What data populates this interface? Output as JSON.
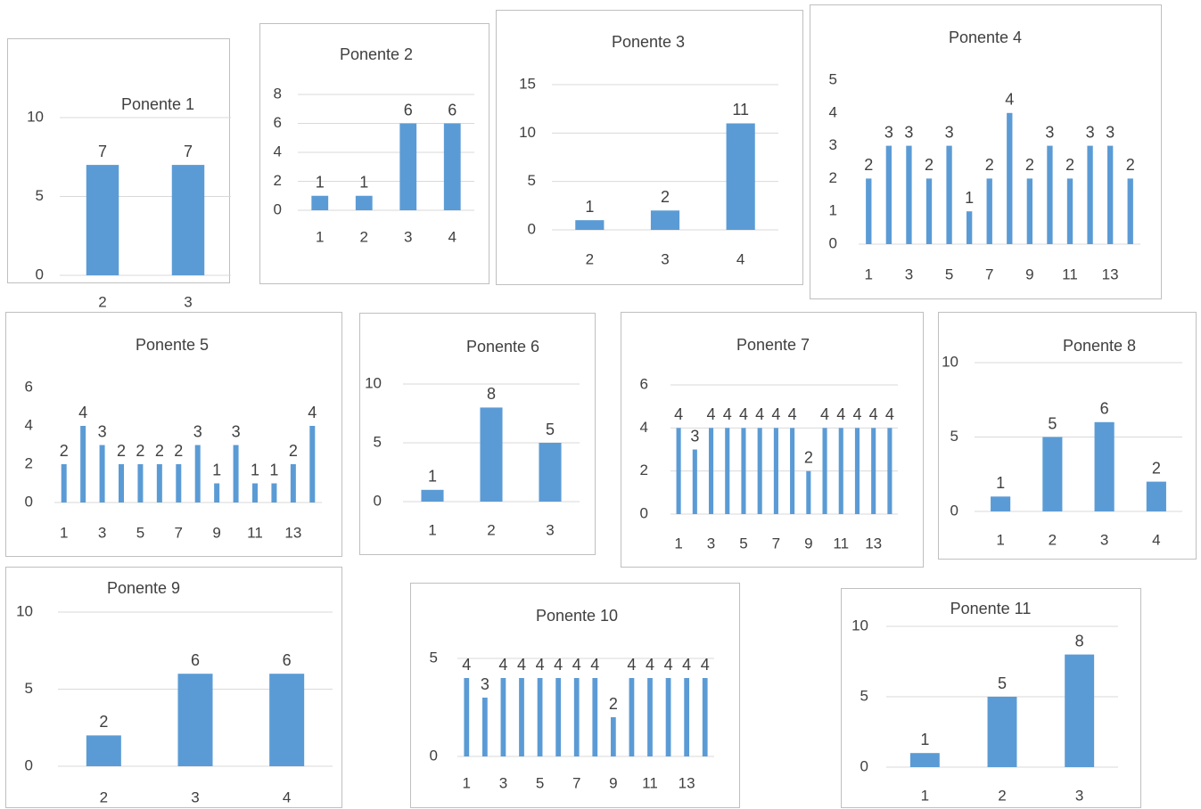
{
  "chart_data": [
    {
      "type": "bar",
      "title": "Ponente 1",
      "categories": [
        "2",
        "3"
      ],
      "values": [
        7,
        7
      ],
      "yticks": [
        0,
        5,
        10
      ],
      "ylim": [
        0,
        10
      ],
      "xlabel": "",
      "ylabel": "",
      "grid": true,
      "color": "#5b9bd5"
    },
    {
      "type": "bar",
      "title": "Ponente 2",
      "categories": [
        "1",
        "2",
        "3",
        "4"
      ],
      "values": [
        1,
        1,
        6,
        6
      ],
      "yticks": [
        0,
        2,
        4,
        6,
        8
      ],
      "ylim": [
        0,
        8
      ],
      "xlabel": "",
      "ylabel": "",
      "grid": true,
      "color": "#5b9bd5"
    },
    {
      "type": "bar",
      "title": "Ponente 3",
      "categories": [
        "2",
        "3",
        "4"
      ],
      "values": [
        1,
        2,
        11
      ],
      "yticks": [
        0,
        5,
        10,
        15
      ],
      "ylim": [
        0,
        15
      ],
      "xlabel": "",
      "ylabel": "",
      "grid": true,
      "color": "#5b9bd5"
    },
    {
      "type": "bar",
      "title": "Ponente 4",
      "categories": [
        "1",
        "2",
        "3",
        "4",
        "5",
        "6",
        "7",
        "8",
        "9",
        "10",
        "11",
        "12",
        "13",
        "14"
      ],
      "xtick_labels": [
        "1",
        "",
        "3",
        "",
        "5",
        "",
        "7",
        "",
        "9",
        "",
        "11",
        "",
        "13",
        ""
      ],
      "values": [
        2,
        3,
        3,
        2,
        3,
        1,
        2,
        4,
        2,
        3,
        2,
        3,
        3,
        2
      ],
      "yticks": [
        0,
        1,
        2,
        3,
        4,
        5
      ],
      "ylim": [
        0,
        5
      ],
      "xlabel": "",
      "ylabel": "",
      "grid": false,
      "color": "#5b9bd5"
    },
    {
      "type": "bar",
      "title": "Ponente 5",
      "categories": [
        "1",
        "2",
        "3",
        "4",
        "5",
        "6",
        "7",
        "8",
        "9",
        "10",
        "11",
        "12",
        "13",
        "14"
      ],
      "xtick_labels": [
        "1",
        "",
        "3",
        "",
        "5",
        "",
        "7",
        "",
        "9",
        "",
        "11",
        "",
        "13",
        ""
      ],
      "values": [
        2,
        4,
        3,
        2,
        2,
        2,
        2,
        3,
        1,
        3,
        1,
        1,
        2,
        4
      ],
      "yticks": [
        0,
        2,
        4,
        6
      ],
      "ylim": [
        0,
        6
      ],
      "xlabel": "",
      "ylabel": "",
      "grid": false,
      "color": "#5b9bd5"
    },
    {
      "type": "bar",
      "title": "Ponente 6",
      "categories": [
        "1",
        "2",
        "3"
      ],
      "values": [
        1,
        8,
        5
      ],
      "yticks": [
        0,
        5,
        10
      ],
      "ylim": [
        0,
        10
      ],
      "xlabel": "",
      "ylabel": "",
      "grid": true,
      "color": "#5b9bd5"
    },
    {
      "type": "bar",
      "title": "Ponente 7",
      "categories": [
        "1",
        "2",
        "3",
        "4",
        "5",
        "6",
        "7",
        "8",
        "9",
        "10",
        "11",
        "12",
        "13",
        "14"
      ],
      "xtick_labels": [
        "1",
        "",
        "3",
        "",
        "5",
        "",
        "7",
        "",
        "9",
        "",
        "11",
        "",
        "13",
        ""
      ],
      "values": [
        4,
        3,
        4,
        4,
        4,
        4,
        4,
        4,
        2,
        4,
        4,
        4,
        4,
        4
      ],
      "yticks": [
        0,
        2,
        4,
        6
      ],
      "ylim": [
        0,
        6
      ],
      "xlabel": "",
      "ylabel": "",
      "grid": true,
      "color": "#5b9bd5"
    },
    {
      "type": "bar",
      "title": "Ponente 8",
      "categories": [
        "1",
        "2",
        "3",
        "4"
      ],
      "values": [
        1,
        5,
        6,
        2
      ],
      "yticks": [
        0,
        5,
        10
      ],
      "ylim": [
        0,
        10
      ],
      "xlabel": "",
      "ylabel": "",
      "grid": true,
      "color": "#5b9bd5"
    },
    {
      "type": "bar",
      "title": "Ponente 9",
      "categories": [
        "2",
        "3",
        "4"
      ],
      "values": [
        2,
        6,
        6
      ],
      "yticks": [
        0,
        5,
        10
      ],
      "ylim": [
        0,
        10
      ],
      "xlabel": "",
      "ylabel": "",
      "grid": true,
      "color": "#5b9bd5"
    },
    {
      "type": "bar",
      "title": "Ponente 10",
      "categories": [
        "1",
        "2",
        "3",
        "4",
        "5",
        "6",
        "7",
        "8",
        "9",
        "10",
        "11",
        "12",
        "13",
        "14"
      ],
      "xtick_labels": [
        "1",
        "",
        "3",
        "",
        "5",
        "",
        "7",
        "",
        "9",
        "",
        "11",
        "",
        "13",
        ""
      ],
      "values": [
        4,
        3,
        4,
        4,
        4,
        4,
        4,
        4,
        2,
        4,
        4,
        4,
        4,
        4
      ],
      "yticks": [
        0,
        5
      ],
      "ylim": [
        0,
        5
      ],
      "xlabel": "",
      "ylabel": "",
      "grid": true,
      "color": "#5b9bd5"
    },
    {
      "type": "bar",
      "title": "Ponente 11",
      "categories": [
        "1",
        "2",
        "3"
      ],
      "values": [
        1,
        5,
        8
      ],
      "yticks": [
        0,
        5,
        10
      ],
      "ylim": [
        0,
        10
      ],
      "xlabel": "",
      "ylabel": "",
      "grid": true,
      "color": "#5b9bd5"
    }
  ]
}
